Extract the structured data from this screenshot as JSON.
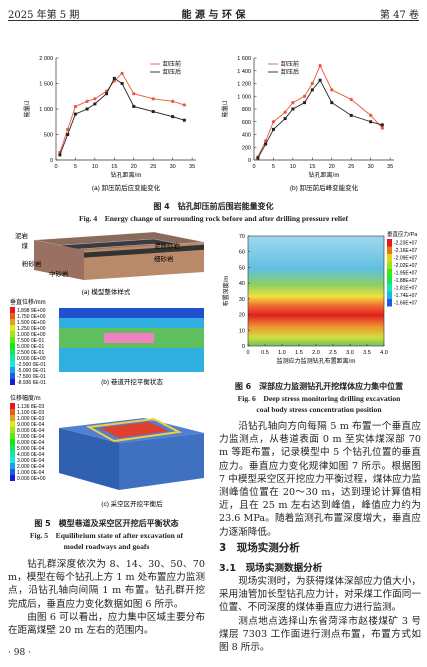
{
  "header": {
    "issue": "2025 年第 5 期",
    "journal": "能 源 与 环 保",
    "volume": "第 47 卷"
  },
  "figure4": {
    "charts": [
      {
        "type": "line",
        "caption": "(a) 卸压前后应变能变化",
        "y_label": "能量/J",
        "x_label": "钻孔距离/m",
        "xlim": [
          0,
          36
        ],
        "xticks": [
          0,
          5,
          10,
          15,
          20,
          25,
          30,
          35
        ],
        "ylim": [
          0,
          2000
        ],
        "yticks": [
          0,
          500,
          {
            "value": 1000,
            "label": "1 000"
          },
          {
            "value": 1500,
            "label": "1 500"
          },
          {
            "value": 2000,
            "label": "2 000"
          }
        ],
        "legend": "top-right",
        "x": [
          1,
          3,
          5,
          8,
          10,
          13,
          15,
          17,
          20,
          25,
          30,
          33
        ],
        "series": [
          {
            "name": "卸压前",
            "color": "#e8583a",
            "values": [
              150,
              600,
              1050,
              1150,
              1200,
              1350,
              1550,
              1700,
              1300,
              1200,
              1150,
              1080
            ]
          },
          {
            "name": "卸压后",
            "color": "#222222",
            "values": [
              100,
              500,
              900,
              1000,
              1100,
              1300,
              1600,
              1500,
              1050,
              950,
              850,
              780
            ]
          }
        ]
      },
      {
        "type": "line",
        "caption": "(b) 卸压前后峰变能变化",
        "y_label": "能量/J",
        "x_label": "钻孔距离/m",
        "xlim": [
          0,
          36
        ],
        "xticks": [
          0,
          5,
          10,
          15,
          20,
          25,
          30,
          35
        ],
        "ylim": [
          0,
          1600
        ],
        "yticks": [
          0,
          200,
          400,
          600,
          800,
          {
            "value": 1000,
            "label": "1 000"
          },
          {
            "value": 1200,
            "label": "1 200"
          },
          {
            "value": 1400,
            "label": "1 400"
          },
          {
            "value": 1600,
            "label": "1 600"
          }
        ],
        "legend": "top-left",
        "x": [
          1,
          3,
          5,
          8,
          10,
          13,
          15,
          17,
          20,
          25,
          30,
          33
        ],
        "series": [
          {
            "name": "卸压前",
            "color": "#e8583a",
            "values": [
              50,
              300,
              600,
              750,
              900,
              1000,
              1200,
              1480,
              1100,
              950,
              700,
              500
            ]
          },
          {
            "name": "卸压后",
            "color": "#222222",
            "values": [
              30,
              250,
              480,
              650,
              800,
              900,
              1100,
              1250,
              900,
              700,
              600,
              550
            ]
          }
        ]
      }
    ],
    "caption_cn": "图 4　钻孔卸压前后围岩能量变化",
    "caption_en": "Fig. 4　Energy change of surrounding rock before and after drilling pressure relief"
  },
  "figure5": {
    "model_labels": [
      "泥岩",
      "煤",
      "粉砂岩",
      "中砂岩",
      "泥质砂岩",
      "细砂岩"
    ],
    "panels": [
      {
        "caption": "(a) 模型整体样式"
      },
      {
        "caption": "(b) 巷道开挖平衡状态",
        "legend_title": "垂直位移/mm",
        "legend_labels": [
          "1.898 9E+00",
          "1.750 0E+00",
          "1.500 0E+00",
          "1.250 0E+00",
          "1.000 0E+00",
          "7.500 0E-01",
          "5.000 0E-01",
          "2.500 0E-01",
          "0.000 0E+00",
          "-2.500 0E-01",
          "-5.000 0E-01",
          "-7.500 0E-01",
          "-8.936 6E-01"
        ]
      },
      {
        "caption": "(c) 采空区开挖平衡后",
        "legend_title": "位移幅度/m",
        "legend_labels": [
          "1.136 8E-03",
          "1.100 0E-03",
          "1.000 0E-03",
          "9.000 0E-04",
          "8.000 0E-04",
          "7.000 0E-04",
          "6.000 0E-04",
          "5.000 0E-04",
          "4.000 0E-04",
          "3.000 0E-04",
          "2.000 0E-04",
          "1.000 0E-04",
          "0.000 0E+00"
        ]
      }
    ],
    "caption_cn": "图 5　模型巷道及采空区开挖后平衡状态",
    "caption_en": [
      "Fig. 5　Equilibrium state of after excavation of",
      "model roadways and goafs"
    ]
  },
  "figure6": {
    "y_label": "布置深度/m",
    "x_label": "监测应力监测钻孔布置距离/m",
    "ylim": [
      0,
      70
    ],
    "yticks": [
      0,
      10,
      20,
      30,
      40,
      50,
      60,
      70
    ],
    "xlim": [
      0,
      4
    ],
    "xticks": [
      0,
      0.5,
      {
        "value": 1,
        "label": "1.0"
      },
      1.5,
      {
        "value": 2,
        "label": "2.0"
      },
      2.5,
      {
        "value": 3,
        "label": "3.0"
      },
      3.5,
      {
        "value": 4,
        "label": "4.0"
      }
    ],
    "legend_title": "垂直应力/Pa",
    "legend_labels": [
      "-2.23E+07",
      "-2.16E+07",
      "-2.09E+07",
      "-2.02E+07",
      "-1.95E+07",
      "-1.88E+07",
      "-1.81E+07",
      "-1.74E+07",
      "-1.66E+07"
    ],
    "caption_cn": "图 6　深部应力监测钻孔开挖煤体应力集中位置",
    "caption_en": [
      "Fig. 6　Deep stress monitoring drilling excavation",
      "coal body stress concentration position"
    ]
  },
  "body": {
    "left": [
      "钻孔群深度依次为 8、14、30、50、70 m，模型在每个钻孔上方 1 m 处布置应力监测点，沿钻孔轴向间隔 1 m 布置。钻孔群开挖完成后，垂直应力变化数据如图 6 所示。",
      "由图 6 可以看出，应力集中区域主要分布在距离煤壁 20 m 左右的范围内。"
    ],
    "right": [
      "沿钻孔轴向方向每隔 5 m 布置一个垂直应力监测点，从巷道表面 0 m 至实体煤深部 70 m 等距布置，记录模型中 5 个钻孔位置的垂直应力。垂直应力变化规律如图 7 所示。根据图 7 中模型采空区开挖应力平衡过程，煤体应力监测峰值位置在 20～30 m，达到理论计算值相近，且在 25 m 左右达到峰值，峰值应力约为 23.6 MPa。随着监测孔布置深度增大，垂直应力逐渐降低。"
    ],
    "section": "3　现场实测分析",
    "subsection": "3.1　现场实测数据分析",
    "right2": [
      "现场实测时，为获得煤体深部应力值大小，采用油管加长型钻孔应力计，对采煤工作面同一位置、不同深度的煤体垂直应力进行监测。",
      "测点地点选择山东省菏泽市赵楼煤矿 3 号煤层 7303 工作面进行测点布置，布置方式如图 8 所示。"
    ]
  },
  "footer": "· 98 ·"
}
